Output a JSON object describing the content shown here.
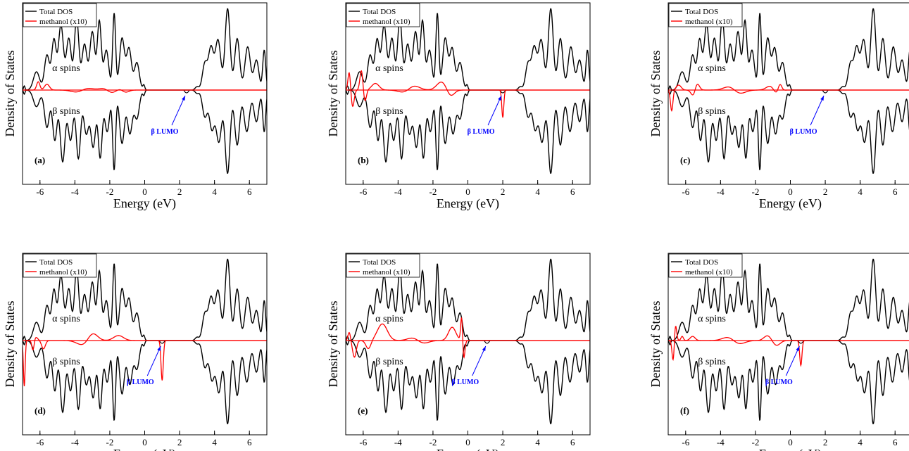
{
  "figure": {
    "colors": {
      "total": "#000000",
      "methanol": "#ff0000",
      "lumo": "#0000ff",
      "reference": "#555555"
    }
  },
  "chart_data": [
    {
      "type": "line",
      "panel_label": "(a)",
      "xlabel": "Energy (eV)",
      "ylabel": "Density of States",
      "xlim": [
        -7,
        7
      ],
      "xticks": [
        -6,
        -4,
        -2,
        0,
        2,
        4,
        6
      ],
      "tick_labels": [
        "-6",
        "-4",
        "-2",
        "0",
        "2",
        "4",
        "6"
      ],
      "legend": {
        "position": "top-left",
        "entries": [
          {
            "label": "Total DOS",
            "color": "#000000"
          },
          {
            "label": "methanol (x10)",
            "color": "#ff0000"
          }
        ]
      },
      "annotations": {
        "alpha": "α spins",
        "beta": "β spins",
        "lumo": "β LUMO",
        "lumo_energy": 2.4
      },
      "methanol_peaks": [
        {
          "e": -6.1,
          "h": 0.28,
          "w": 0.13
        },
        {
          "e": -5.6,
          "h": 0.07,
          "w": 0.2
        },
        {
          "e": -3.5,
          "h": 0.04,
          "w": 0.6
        },
        {
          "e": -2.2,
          "h": 0.05,
          "w": 0.4
        },
        {
          "e": -1.3,
          "h": 0.06,
          "w": 0.3
        },
        {
          "e": -6.1,
          "h": -0.18,
          "w": 0.13
        },
        {
          "e": -3.8,
          "h": -0.05,
          "w": 0.5
        },
        {
          "e": -2.0,
          "h": -0.06,
          "w": 0.4
        },
        {
          "e": -1.2,
          "h": -0.07,
          "w": 0.3
        }
      ]
    },
    {
      "type": "line",
      "panel_label": "(b)",
      "xlabel": "Energy (eV)",
      "ylabel": "Density of States",
      "xlim": [
        -7,
        7
      ],
      "xticks": [
        -6,
        -4,
        -2,
        0,
        2,
        4,
        6
      ],
      "tick_labels": [
        "-6",
        "-4",
        "-2",
        "0",
        "2",
        "4",
        "6"
      ],
      "legend": {
        "position": "top-left",
        "entries": [
          {
            "label": "Total DOS",
            "color": "#000000"
          },
          {
            "label": "methanol (x10)",
            "color": "#ff0000"
          }
        ]
      },
      "annotations": {
        "alpha": "α spins",
        "beta": "β spins",
        "lumo": "β LUMO",
        "lumo_energy": 2.0
      },
      "methanol_peaks": [
        {
          "e": -6.8,
          "h": 0.22,
          "w": 0.1
        },
        {
          "e": -6.1,
          "h": 0.24,
          "w": 0.12
        },
        {
          "e": -5.3,
          "h": 0.08,
          "w": 0.3
        },
        {
          "e": -3.2,
          "h": 0.08,
          "w": 0.5
        },
        {
          "e": -1.5,
          "h": 0.1,
          "w": 0.4
        },
        {
          "e": -6.6,
          "h": -0.2,
          "w": 0.12
        },
        {
          "e": -5.9,
          "h": -0.14,
          "w": 0.12
        },
        {
          "e": -3.5,
          "h": -0.06,
          "w": 0.5
        },
        {
          "e": -1.0,
          "h": -0.08,
          "w": 0.3
        },
        {
          "e": 2.0,
          "h": -0.33,
          "w": 0.08
        }
      ]
    },
    {
      "type": "line",
      "panel_label": "(c)",
      "xlabel": "Energy (eV)",
      "ylabel": "Density of States",
      "xlim": [
        -7,
        7
      ],
      "xticks": [
        -6,
        -4,
        -2,
        0,
        2,
        4,
        6
      ],
      "tick_labels": [
        "-6",
        "-4",
        "-2",
        "0",
        "2",
        "4",
        "6"
      ],
      "legend": {
        "position": "top-left",
        "entries": [
          {
            "label": "Total DOS",
            "color": "#000000"
          },
          {
            "label": "methanol (x10)",
            "color": "#ff0000"
          }
        ]
      },
      "annotations": {
        "alpha": "α spins",
        "beta": "β spins",
        "lumo": "β LUMO",
        "lumo_energy": 2.0
      },
      "methanol_peaks": [
        {
          "e": -6.4,
          "h": 0.06,
          "w": 0.2
        },
        {
          "e": -5.4,
          "h": 0.16,
          "w": 0.2
        },
        {
          "e": -3.4,
          "h": 0.06,
          "w": 0.5
        },
        {
          "e": -1.0,
          "h": 0.08,
          "w": 0.4
        },
        {
          "e": -0.6,
          "h": 0.1,
          "w": 0.15
        },
        {
          "e": -6.8,
          "h": -0.25,
          "w": 0.1
        },
        {
          "e": -5.5,
          "h": -0.15,
          "w": 0.2
        },
        {
          "e": -3.0,
          "h": -0.06,
          "w": 0.5
        },
        {
          "e": -0.8,
          "h": -0.1,
          "w": 0.3
        }
      ]
    },
    {
      "type": "line",
      "panel_label": "(d)",
      "xlabel": "Energy (eV)",
      "ylabel": "Density of States",
      "xlim": [
        -7,
        7
      ],
      "xticks": [
        -6,
        -4,
        -2,
        0,
        2,
        4,
        6
      ],
      "tick_labels": [
        "-6",
        "-4",
        "-2",
        "0",
        "2",
        "4",
        "6"
      ],
      "legend": {
        "position": "top-left",
        "entries": [
          {
            "label": "Total DOS",
            "color": "#000000"
          },
          {
            "label": "methanol (x10)",
            "color": "#ff0000"
          }
        ]
      },
      "annotations": {
        "alpha": "α spins",
        "beta": "β spins",
        "lumo": "β LUMO",
        "lumo_energy": 1.0
      },
      "methanol_peaks": [
        {
          "e": -6.3,
          "h": 0.05,
          "w": 0.2
        },
        {
          "e": -3.0,
          "h": 0.1,
          "w": 0.4
        },
        {
          "e": -1.5,
          "h": 0.06,
          "w": 0.4
        },
        {
          "e": -6.9,
          "h": -0.55,
          "w": 0.07
        },
        {
          "e": -6.4,
          "h": -0.15,
          "w": 0.1
        },
        {
          "e": -5.8,
          "h": -0.1,
          "w": 0.15
        },
        {
          "e": -3.5,
          "h": -0.06,
          "w": 0.5
        },
        {
          "e": 1.0,
          "h": -0.48,
          "w": 0.09
        }
      ]
    },
    {
      "type": "line",
      "panel_label": "(e)",
      "xlabel": "Energy (eV)",
      "ylabel": "Density of States",
      "xlim": [
        -7,
        7
      ],
      "xticks": [
        -6,
        -4,
        -2,
        0,
        2,
        4,
        6
      ],
      "tick_labels": [
        "-6",
        "-4",
        "-2",
        "0",
        "2",
        "4",
        "6"
      ],
      "legend": {
        "position": "top-left",
        "entries": [
          {
            "label": "Total DOS",
            "color": "#000000"
          },
          {
            "label": "methanol (x10)",
            "color": "#ff0000"
          }
        ]
      },
      "annotations": {
        "alpha": "α spins",
        "beta": "β spins",
        "lumo": "β LUMO",
        "lumo_energy": 1.1
      },
      "methanol_peaks": [
        {
          "e": -6.8,
          "h": 0.1,
          "w": 0.1
        },
        {
          "e": -4.9,
          "h": 0.2,
          "w": 0.4
        },
        {
          "e": -3.0,
          "h": 0.06,
          "w": 0.5
        },
        {
          "e": -0.9,
          "h": 0.16,
          "w": 0.3
        },
        {
          "e": -0.35,
          "h": 0.35,
          "w": 0.08
        },
        {
          "e": -6.5,
          "h": -0.2,
          "w": 0.15
        },
        {
          "e": -5.7,
          "h": -0.1,
          "w": 0.2
        },
        {
          "e": -2.7,
          "h": -0.06,
          "w": 0.5
        },
        {
          "e": -0.25,
          "h": -0.25,
          "w": 0.1
        }
      ]
    },
    {
      "type": "line",
      "panel_label": "(f)",
      "xlabel": "Energy (eV)",
      "ylabel": "Density of States",
      "xlim": [
        -7,
        7
      ],
      "xticks": [
        -6,
        -4,
        -2,
        0,
        2,
        4,
        6
      ],
      "tick_labels": [
        "-6",
        "-4",
        "-2",
        "0",
        "2",
        "4",
        "6"
      ],
      "legend": {
        "position": "top-left",
        "entries": [
          {
            "label": "Total DOS",
            "color": "#000000"
          },
          {
            "label": "methanol (x10)",
            "color": "#ff0000"
          }
        ]
      },
      "annotations": {
        "alpha": "α spins",
        "beta": "β spins",
        "lumo": "β LUMO",
        "lumo_energy": 0.6
      },
      "methanol_peaks": [
        {
          "e": -6.6,
          "h": 0.25,
          "w": 0.1
        },
        {
          "e": -6.2,
          "h": 0.2,
          "w": 0.1
        },
        {
          "e": -5.6,
          "h": 0.05,
          "w": 0.2
        },
        {
          "e": -3.5,
          "h": 0.05,
          "w": 0.5
        },
        {
          "e": -1.3,
          "h": 0.06,
          "w": 0.3
        },
        {
          "e": -6.7,
          "h": -0.3,
          "w": 0.1
        },
        {
          "e": -6.2,
          "h": -0.15,
          "w": 0.1
        },
        {
          "e": -3.0,
          "h": -0.05,
          "w": 0.5
        },
        {
          "e": -0.8,
          "h": -0.06,
          "w": 0.3
        },
        {
          "e": 0.6,
          "h": -0.3,
          "w": 0.09
        }
      ]
    }
  ]
}
